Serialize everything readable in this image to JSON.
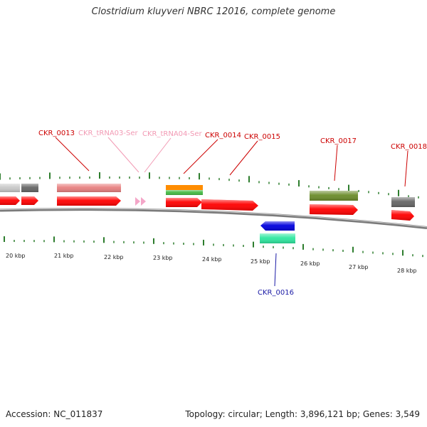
{
  "title": "Clostridium kluyveri NBRC 12016, complete genome",
  "accession": "Accession: NC_011837",
  "summary": "Topology: circular; Length: 3,896,121 bp; Genes: 3,549",
  "colors": {
    "cds": "#ff0000",
    "backbone": "#888888",
    "tick": "#2d7d2d",
    "label_red": "#cc0000",
    "label_pink": "#f29ab4",
    "label_blue": "#1a1aa6",
    "trna": "#f4a6c8",
    "salmon": "#e88080",
    "lightgray": "#c8c8c8",
    "darkgray": "#666666",
    "olive": "#6b8c2a",
    "orange": "#ff8c00",
    "green": "#44bb44",
    "blue": "#0000dd",
    "teal": "#2ee8a0"
  },
  "scale_labels": [
    "20 kbp",
    "21 kbp",
    "22 kbp",
    "23 kbp",
    "24 kbp",
    "25 kbp",
    "26 kbp",
    "27 kbp",
    "28 kbp"
  ],
  "gene_labels": [
    {
      "text": "CKR_0013",
      "color": "label_red"
    },
    {
      "text": "CKR_tRNA03-Ser",
      "color": "label_pink"
    },
    {
      "text": "CKR_tRNA04-Ser",
      "color": "label_pink"
    },
    {
      "text": "CKR_0014",
      "color": "label_red"
    },
    {
      "text": "CKR_0015",
      "color": "label_red"
    },
    {
      "text": "CKR_0017",
      "color": "label_red"
    },
    {
      "text": "CKR_0018",
      "color": "label_red"
    },
    {
      "text": "CKR_0016",
      "color": "label_blue"
    }
  ]
}
